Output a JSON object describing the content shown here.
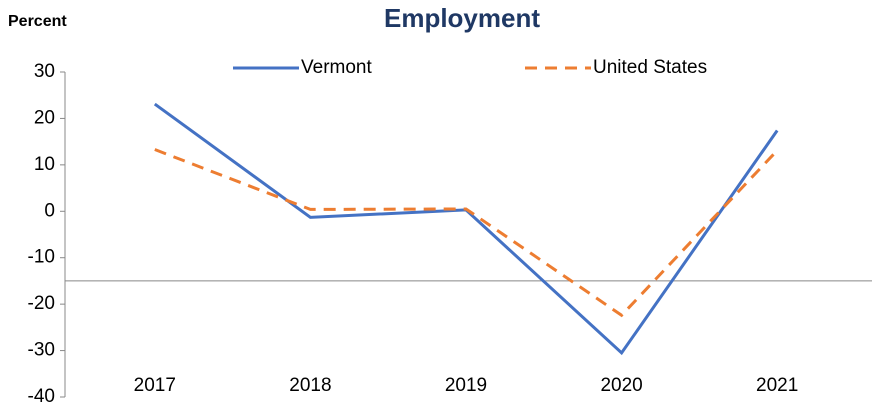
{
  "chart_data": {
    "type": "line",
    "title": "Employment",
    "y_label": "Percent",
    "categories": [
      "2017",
      "2018",
      "2019",
      "2020",
      "2021"
    ],
    "series": [
      {
        "name": "Vermont",
        "color": "#4472c4",
        "dash": "solid",
        "values": [
          23.1,
          -1.3,
          0.3,
          -30.5,
          17.4
        ]
      },
      {
        "name": "United States",
        "color": "#ed7d31",
        "dash": "dashed",
        "values": [
          13.3,
          0.4,
          0.5,
          -22.4,
          13.1
        ]
      }
    ],
    "ylim": [
      -40,
      30
    ],
    "yticks": [
      -40,
      -30,
      -20,
      -10,
      0,
      10,
      20,
      30
    ],
    "x_axis_crosses_at": -15,
    "legend": "top"
  }
}
